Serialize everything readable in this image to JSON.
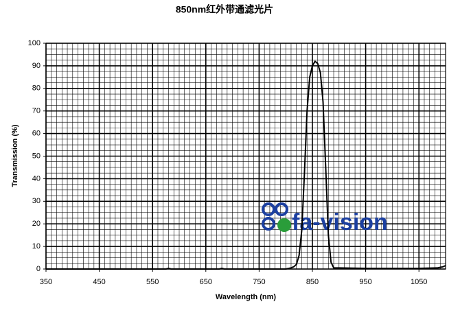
{
  "chart_data": {
    "type": "line",
    "title": "850nm红外带通滤光片",
    "x_label": "Wavelength (nm)",
    "y_label": "Transmission (%)",
    "watermark": "fa-vision",
    "xlim": [
      350,
      1100
    ],
    "ylim": [
      0,
      100
    ],
    "xticks": [
      350,
      450,
      550,
      650,
      750,
      850,
      950,
      1050
    ],
    "yticks": [
      0,
      10,
      20,
      30,
      40,
      50,
      60,
      70,
      80,
      90,
      100
    ],
    "grid": true,
    "minor_grid": {
      "x": 10,
      "y": 2.5
    },
    "series": [
      {
        "name": "Transmission",
        "color": "#000000",
        "x": [
          350,
          500,
          575,
          580,
          585,
          650,
          675,
          680,
          685,
          750,
          800,
          810,
          815,
          820,
          825,
          830,
          835,
          840,
          845,
          850,
          855,
          860,
          865,
          870,
          875,
          880,
          885,
          890,
          900,
          950,
          1000,
          1050,
          1085,
          1095,
          1100
        ],
        "values": [
          0,
          0,
          0,
          0.3,
          0,
          0,
          0,
          0.3,
          0,
          0,
          0,
          0.5,
          1,
          2,
          6,
          17,
          42,
          70,
          85,
          90,
          92,
          91,
          87,
          74,
          45,
          15,
          3,
          0.5,
          0.5,
          0.3,
          0.3,
          0.3,
          0.5,
          1,
          1.5
        ]
      }
    ]
  }
}
